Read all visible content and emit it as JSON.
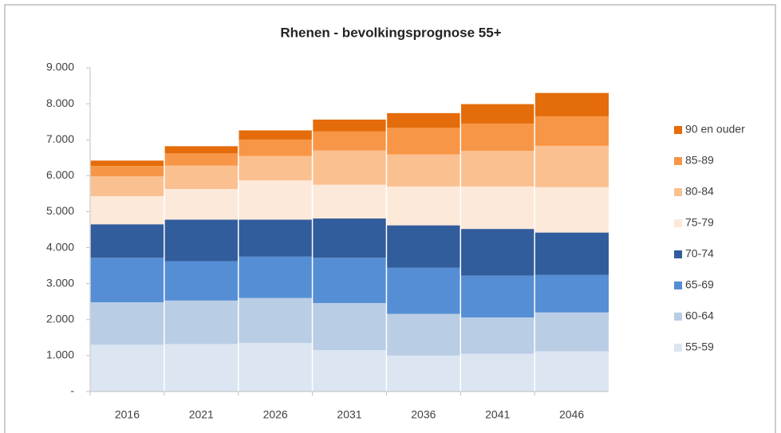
{
  "chart_data": {
    "type": "stacked_bar",
    "title": "Rhenen - bevolkingsprognose 55+",
    "categories": [
      "2016",
      "2021",
      "2026",
      "2031",
      "2036",
      "2041",
      "2046"
    ],
    "series": [
      {
        "name": "55-59",
        "color": "#dce6f2",
        "values": [
          1300,
          1320,
          1350,
          1150,
          1000,
          1050,
          1120
        ]
      },
      {
        "name": "60-64",
        "color": "#b9cde5",
        "values": [
          1180,
          1210,
          1250,
          1310,
          1160,
          1010,
          1080
        ]
      },
      {
        "name": "65-69",
        "color": "#558ed5",
        "values": [
          1240,
          1090,
          1150,
          1260,
          1280,
          1160,
          1040
        ]
      },
      {
        "name": "70-74",
        "color": "#325d9c",
        "values": [
          930,
          1160,
          1030,
          1090,
          1180,
          1300,
          1180
        ]
      },
      {
        "name": "75-79",
        "color": "#fde9d9",
        "values": [
          780,
          850,
          1090,
          940,
          1080,
          1180,
          1260
        ]
      },
      {
        "name": "80-84",
        "color": "#fac090",
        "values": [
          550,
          650,
          680,
          950,
          890,
          990,
          1150
        ]
      },
      {
        "name": "85-89",
        "color": "#f79646",
        "values": [
          290,
          340,
          450,
          530,
          740,
          760,
          820
        ]
      },
      {
        "name": "90 en ouder",
        "color": "#e46c0a",
        "values": [
          150,
          200,
          260,
          330,
          410,
          540,
          650
        ]
      }
    ],
    "ylim": [
      0,
      9000
    ],
    "yticks": [
      {
        "value": 0,
        "label": "-"
      },
      {
        "value": 1000,
        "label": "1.000"
      },
      {
        "value": 2000,
        "label": "2.000"
      },
      {
        "value": 3000,
        "label": "3.000"
      },
      {
        "value": 4000,
        "label": "4.000"
      },
      {
        "value": 5000,
        "label": "5.000"
      },
      {
        "value": 6000,
        "label": "6.000"
      },
      {
        "value": 7000,
        "label": "7.000"
      },
      {
        "value": 8000,
        "label": "8.000"
      },
      {
        "value": 9000,
        "label": "9.000"
      }
    ],
    "grid": false,
    "legend": "right"
  }
}
